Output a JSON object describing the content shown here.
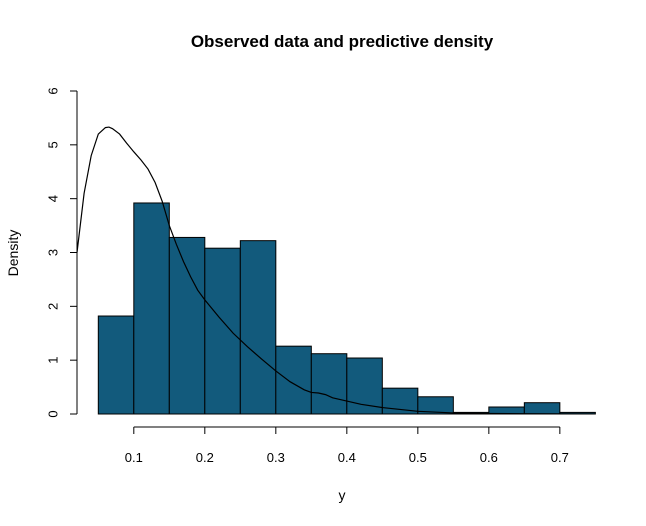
{
  "chart_data": {
    "type": "bar",
    "title": "Observed data and predictive density",
    "xlabel": "y",
    "ylabel": "Density",
    "xlim": [
      0.02,
      0.765
    ],
    "ylim": [
      0,
      6
    ],
    "x_ticks": [
      0.1,
      0.2,
      0.3,
      0.4,
      0.5,
      0.6,
      0.7
    ],
    "x_tick_labels": [
      "0.1",
      "0.2",
      "0.3",
      "0.4",
      "0.5",
      "0.6",
      "0.7"
    ],
    "y_ticks": [
      0,
      1,
      2,
      3,
      4,
      5,
      6
    ],
    "y_tick_labels": [
      "0",
      "1",
      "2",
      "3",
      "4",
      "5",
      "6"
    ],
    "bar_color": "#125a7c",
    "bins": [
      {
        "x0": 0.05,
        "x1": 0.1,
        "density": 1.82
      },
      {
        "x0": 0.1,
        "x1": 0.15,
        "density": 3.92
      },
      {
        "x0": 0.15,
        "x1": 0.2,
        "density": 3.28
      },
      {
        "x0": 0.2,
        "x1": 0.25,
        "density": 3.08
      },
      {
        "x0": 0.25,
        "x1": 0.3,
        "density": 3.22
      },
      {
        "x0": 0.3,
        "x1": 0.35,
        "density": 1.26
      },
      {
        "x0": 0.35,
        "x1": 0.4,
        "density": 1.12
      },
      {
        "x0": 0.4,
        "x1": 0.45,
        "density": 1.04
      },
      {
        "x0": 0.45,
        "x1": 0.5,
        "density": 0.48
      },
      {
        "x0": 0.5,
        "x1": 0.55,
        "density": 0.32
      },
      {
        "x0": 0.55,
        "x1": 0.6,
        "density": 0.03
      },
      {
        "x0": 0.6,
        "x1": 0.65,
        "density": 0.13
      },
      {
        "x0": 0.65,
        "x1": 0.7,
        "density": 0.21
      },
      {
        "x0": 0.7,
        "x1": 0.75,
        "density": 0.03
      }
    ],
    "density_curve": {
      "x": [
        0.02,
        0.03,
        0.04,
        0.05,
        0.06,
        0.065,
        0.07,
        0.08,
        0.09,
        0.1,
        0.11,
        0.12,
        0.13,
        0.14,
        0.15,
        0.16,
        0.17,
        0.18,
        0.19,
        0.2,
        0.22,
        0.24,
        0.26,
        0.28,
        0.3,
        0.32,
        0.34,
        0.35,
        0.36,
        0.37,
        0.38,
        0.4,
        0.42,
        0.45,
        0.5,
        0.55,
        0.6,
        0.65,
        0.7,
        0.75
      ],
      "y": [
        3.0,
        4.1,
        4.8,
        5.2,
        5.32,
        5.33,
        5.3,
        5.2,
        5.03,
        4.87,
        4.72,
        4.55,
        4.3,
        3.95,
        3.5,
        3.15,
        2.83,
        2.55,
        2.3,
        2.12,
        1.8,
        1.5,
        1.25,
        1.02,
        0.8,
        0.6,
        0.45,
        0.4,
        0.39,
        0.36,
        0.3,
        0.24,
        0.18,
        0.12,
        0.05,
        0.02,
        0.01,
        0.005,
        0.002,
        0.001
      ]
    }
  }
}
